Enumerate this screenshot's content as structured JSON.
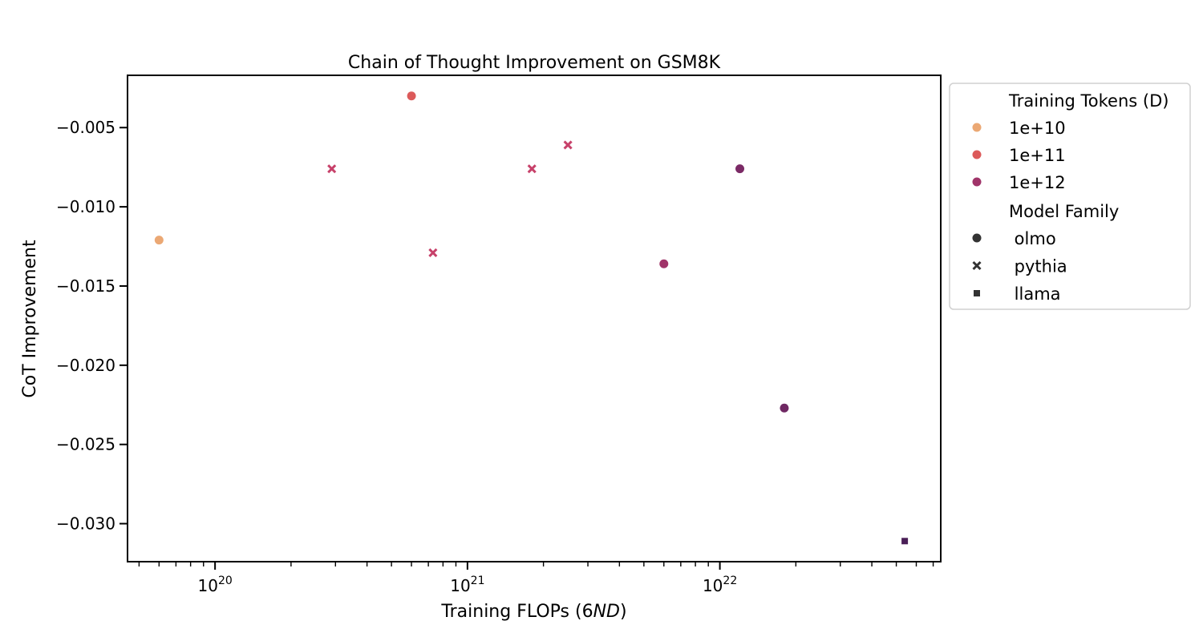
{
  "chart_data": {
    "type": "scatter",
    "title": "Chain of Thought Improvement on GSM8K",
    "xlabel": "Training FLOPs (6ND)",
    "xlabel_parts": {
      "prefix": "Training FLOPs (6",
      "italic": "ND",
      "suffix": ")"
    },
    "ylabel": "CoT Improvement",
    "xscale": "log",
    "xlim": [
      4.5e+19,
      7.5e+22
    ],
    "ylim": [
      -0.0324,
      -0.0017
    ],
    "x_ticks": [
      {
        "value": 1e+20,
        "base": "10",
        "exp": "20"
      },
      {
        "value": 1e+21,
        "base": "10",
        "exp": "21"
      },
      {
        "value": 1e+22,
        "base": "10",
        "exp": "22"
      }
    ],
    "y_ticks": [
      -0.005,
      -0.01,
      -0.015,
      -0.02,
      -0.025,
      -0.03
    ],
    "y_tick_labels": [
      "−0.005",
      "−0.010",
      "−0.015",
      "−0.020",
      "−0.025",
      "−0.030"
    ],
    "grid": false,
    "legend_position": "outside-right-top",
    "legend": {
      "hue_title": "Training Tokens (D)",
      "hue_entries": [
        {
          "label": "1e+10",
          "color": "#eba874"
        },
        {
          "label": "1e+11",
          "color": "#dc5a5a"
        },
        {
          "label": "1e+12",
          "color": "#a03469"
        }
      ],
      "style_title": "Model Family",
      "style_entries": [
        {
          "label": " olmo",
          "marker": "circle"
        },
        {
          "label": " pythia",
          "marker": "x"
        },
        {
          "label": " llama",
          "marker": "square"
        }
      ]
    },
    "points": [
      {
        "x": 6e+19,
        "y": -0.0121,
        "family": "olmo",
        "color": "#eba874"
      },
      {
        "x": 6e+20,
        "y": -0.003,
        "family": "olmo",
        "color": "#dc5a5a"
      },
      {
        "x": 2.9e+20,
        "y": -0.0076,
        "family": "pythia",
        "color": "#c7416a"
      },
      {
        "x": 7.3e+20,
        "y": -0.0129,
        "family": "pythia",
        "color": "#c7416a"
      },
      {
        "x": 1.8e+21,
        "y": -0.0076,
        "family": "pythia",
        "color": "#c7416a"
      },
      {
        "x": 2.5e+21,
        "y": -0.0061,
        "family": "pythia",
        "color": "#c7416a"
      },
      {
        "x": 6e+21,
        "y": -0.0136,
        "family": "olmo",
        "color": "#a03469"
      },
      {
        "x": 1.2e+22,
        "y": -0.0076,
        "family": "olmo",
        "color": "#7b2a66"
      },
      {
        "x": 1.8e+22,
        "y": -0.0227,
        "family": "olmo",
        "color": "#6f2863"
      },
      {
        "x": 5.4e+22,
        "y": -0.0311,
        "family": "llama",
        "color": "#4a1e57"
      }
    ]
  }
}
